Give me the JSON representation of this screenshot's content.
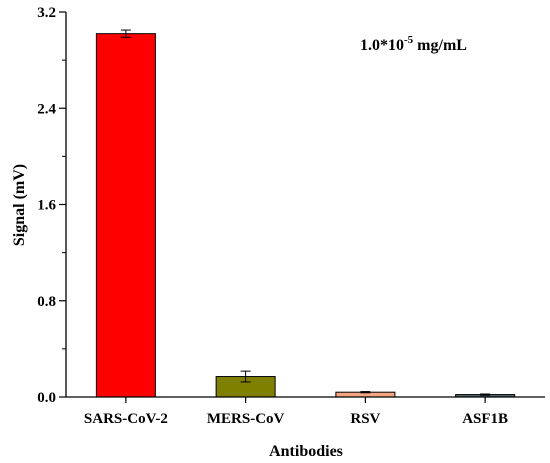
{
  "chart_data": {
    "type": "bar",
    "categories": [
      "SARS-CoV-2",
      "MERS-CoV",
      "RSV",
      "ASF1B"
    ],
    "values": [
      3.02,
      0.17,
      0.04,
      0.02
    ],
    "errors": [
      0.03,
      0.045,
      0.005,
      0.005
    ],
    "colors": [
      "#ff0000",
      "#808000",
      "#f4a582",
      "#4f6d6d"
    ],
    "xlabel": "Antibodies",
    "ylabel": "Signal (mV)",
    "ylim": [
      0,
      3.2
    ],
    "yticks": [
      0.0,
      0.8,
      1.6,
      2.4,
      3.2
    ],
    "ytick_labels": [
      "0.0",
      "0.8",
      "1.6",
      "2.4",
      "3.2"
    ],
    "grid": false,
    "annotation": {
      "base": "1.0*10",
      "exponent": "-5",
      "unit": " mg/mL"
    }
  }
}
